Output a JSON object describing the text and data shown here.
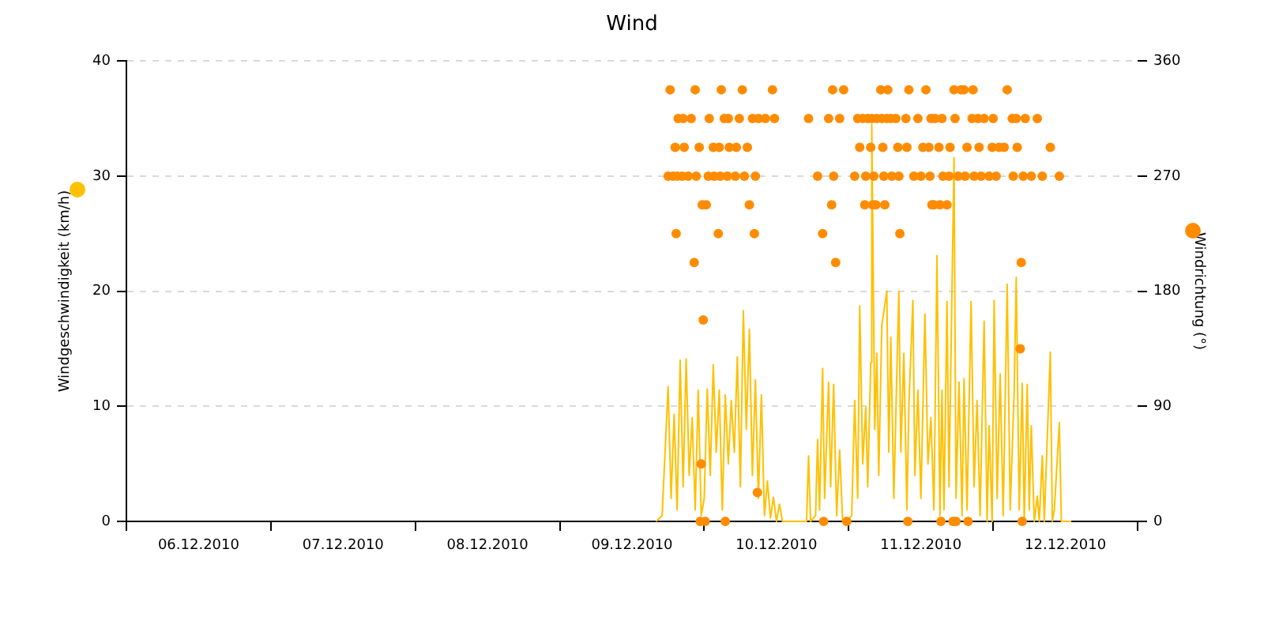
{
  "chart_data": {
    "type": "line",
    "title": "Wind",
    "ylabel": "Windgeschwindigkeit (km/h)",
    "y2label": "Windrichtung (°)",
    "xlim": [
      "2010-12-06T00:00",
      "2010-12-13T00:00"
    ],
    "xticks": [
      {
        "value": "2010-12-06T00:00",
        "label": null
      },
      {
        "value": "2010-12-06T12:00",
        "label": "06.12.2010"
      },
      {
        "value": "2010-12-07T00:00",
        "label": null
      },
      {
        "value": "2010-12-07T12:00",
        "label": "07.12.2010"
      },
      {
        "value": "2010-12-08T00:00",
        "label": null
      },
      {
        "value": "2010-12-08T12:00",
        "label": "08.12.2010"
      },
      {
        "value": "2010-12-09T00:00",
        "label": null
      },
      {
        "value": "2010-12-09T12:00",
        "label": "09.12.2010"
      },
      {
        "value": "2010-12-10T00:00",
        "label": null
      },
      {
        "value": "2010-12-10T12:00",
        "label": "10.12.2010"
      },
      {
        "value": "2010-12-11T00:00",
        "label": null
      },
      {
        "value": "2010-12-11T12:00",
        "label": "11.12.2010"
      },
      {
        "value": "2010-12-12T00:00",
        "label": null
      },
      {
        "value": "2010-12-12T12:00",
        "label": "12.12.2010"
      },
      {
        "value": "2010-12-13T00:00",
        "label": null
      }
    ],
    "ylim": [
      0,
      40
    ],
    "yticks": [
      0,
      10,
      20,
      30,
      40
    ],
    "y2lim": [
      0,
      360
    ],
    "y2ticks": [
      0,
      90,
      180,
      270,
      360
    ],
    "grid": "y",
    "legend": false,
    "line_style": "solid",
    "series": [
      {
        "axis": "y",
        "color": "#ffc000",
        "marker": "none",
        "x": [
          "2010-12-09T16:00",
          "2010-12-09T17:00",
          "2010-12-09T18:00",
          "2010-12-09T18:30",
          "2010-12-09T19:00",
          "2010-12-09T19:30",
          "2010-12-09T20:00",
          "2010-12-09T20:30",
          "2010-12-09T21:00",
          "2010-12-09T21:30",
          "2010-12-09T22:00",
          "2010-12-09T22:30",
          "2010-12-09T23:00",
          "2010-12-09T23:30",
          "2010-12-10T00:00",
          "2010-12-10T00:30",
          "2010-12-10T01:00",
          "2010-12-10T01:30",
          "2010-12-10T02:00",
          "2010-12-10T02:30",
          "2010-12-10T03:00",
          "2010-12-10T03:30",
          "2010-12-10T04:00",
          "2010-12-10T04:30",
          "2010-12-10T05:00",
          "2010-12-10T05:30",
          "2010-12-10T06:00",
          "2010-12-10T06:30",
          "2010-12-10T07:00",
          "2010-12-10T07:30",
          "2010-12-10T08:00",
          "2010-12-10T08:30",
          "2010-12-10T09:00",
          "2010-12-10T09:30",
          "2010-12-10T10:00",
          "2010-12-10T10:30",
          "2010-12-10T11:00",
          "2010-12-10T11:30",
          "2010-12-10T12:00",
          "2010-12-10T12:30",
          "2010-12-10T13:00",
          "2010-12-10T17:00",
          "2010-12-10T17:20",
          "2010-12-10T17:40",
          "2010-12-10T18:30",
          "2010-12-10T18:50",
          "2010-12-10T19:10",
          "2010-12-10T19:40",
          "2010-12-10T20:00",
          "2010-12-10T20:40",
          "2010-12-10T21:00",
          "2010-12-10T21:30",
          "2010-12-10T22:00",
          "2010-12-10T22:30",
          "2010-12-10T23:00",
          "2010-12-10T23:40",
          "2010-12-11T00:30",
          "2010-12-11T01:00",
          "2010-12-11T01:30",
          "2010-12-11T01:50",
          "2010-12-11T02:20",
          "2010-12-11T02:50",
          "2010-12-11T03:10",
          "2010-12-11T03:40",
          "2010-12-11T03:50",
          "2010-12-11T04:20",
          "2010-12-11T04:40",
          "2010-12-11T05:00",
          "2010-12-11T05:30",
          "2010-12-11T06:20",
          "2010-12-11T06:40",
          "2010-12-11T07:00",
          "2010-12-11T07:30",
          "2010-12-11T08:20",
          "2010-12-11T08:40",
          "2010-12-11T09:10",
          "2010-12-11T09:40",
          "2010-12-11T10:00",
          "2010-12-11T10:40",
          "2010-12-11T11:00",
          "2010-12-11T11:30",
          "2010-12-11T12:00",
          "2010-12-11T12:40",
          "2010-12-11T13:10",
          "2010-12-11T13:40",
          "2010-12-11T14:10",
          "2010-12-11T14:40",
          "2010-12-11T15:10",
          "2010-12-11T15:30",
          "2010-12-11T15:50",
          "2010-12-11T16:20",
          "2010-12-11T16:40",
          "2010-12-11T17:30",
          "2010-12-11T17:50",
          "2010-12-11T18:20",
          "2010-12-11T18:50",
          "2010-12-11T19:10",
          "2010-12-11T19:40",
          "2010-12-11T20:20",
          "2010-12-11T20:50",
          "2010-12-11T21:20",
          "2010-12-11T21:50",
          "2010-12-11T22:30",
          "2010-12-11T23:00",
          "2010-12-11T23:20",
          "2010-12-11T23:50",
          "2010-12-12T00:10",
          "2010-12-12T00:40",
          "2010-12-12T01:10",
          "2010-12-12T01:40",
          "2010-12-12T02:20",
          "2010-12-12T02:50",
          "2010-12-12T03:30",
          "2010-12-12T03:50",
          "2010-12-12T04:20",
          "2010-12-12T04:50",
          "2010-12-12T05:10",
          "2010-12-12T05:40",
          "2010-12-12T06:00",
          "2010-12-12T06:20",
          "2010-12-12T06:50",
          "2010-12-12T07:20",
          "2010-12-12T07:40",
          "2010-12-12T08:10",
          "2010-12-12T08:30",
          "2010-12-12T09:30",
          "2010-12-12T09:50",
          "2010-12-12T10:10",
          "2010-12-12T11:00",
          "2010-12-12T11:20",
          "2010-12-12T12:00",
          "2010-12-12T13:00"
        ],
        "values": [
          0,
          0.5,
          11.7,
          2,
          9.3,
          1,
          14,
          3,
          14.1,
          4,
          9,
          1,
          11.4,
          0.5,
          2,
          11.5,
          4,
          13.6,
          6,
          11.4,
          1,
          11,
          5,
          10.5,
          6,
          14.3,
          3,
          18.3,
          8,
          16.7,
          4,
          12.3,
          2,
          11,
          0.5,
          3.5,
          0.3,
          2.1,
          0,
          1.5,
          0,
          0,
          5.7,
          0,
          0.5,
          7.1,
          1,
          13.3,
          2,
          12.1,
          3,
          11.9,
          0.5,
          6.2,
          0,
          0,
          0.5,
          10.5,
          2,
          18.7,
          5,
          9.9,
          3,
          13.8,
          34.5,
          8,
          14.6,
          4,
          17,
          20,
          6,
          16,
          2,
          20,
          6,
          14.6,
          1,
          10,
          19.2,
          4,
          11.4,
          2,
          18,
          5,
          9,
          1,
          23.1,
          0.5,
          11.4,
          1,
          19.1,
          3,
          31.6,
          2,
          12.1,
          0.5,
          12.4,
          1,
          19.1,
          3,
          10.5,
          0.5,
          17.4,
          0,
          8.3,
          0,
          19.2,
          2,
          12.8,
          0.5,
          20.6,
          1,
          11.4,
          21.2,
          1,
          12,
          0,
          11.9,
          1,
          8.3,
          0,
          2.2,
          0,
          5.7,
          0,
          14.7,
          0,
          1,
          8.6,
          0,
          0,
          0
        ]
      },
      {
        "type": "scatter",
        "axis": "y2",
        "color": "#ff8c00",
        "marker": "circle",
        "x": [
          "2010-12-09T18:20",
          "2010-12-09T22:30",
          "2010-12-10T02:50",
          "2010-12-10T06:20",
          "2010-12-10T11:20",
          "2010-12-09T19:40",
          "2010-12-09T20:30",
          "2010-12-09T21:50",
          "2010-12-10T00:50",
          "2010-12-10T03:20",
          "2010-12-10T04:00",
          "2010-12-10T05:50",
          "2010-12-10T08:00",
          "2010-12-10T09:00",
          "2010-12-10T10:10",
          "2010-12-10T11:40",
          "2010-12-09T19:10",
          "2010-12-09T20:40",
          "2010-12-09T23:10",
          "2010-12-10T01:30",
          "2010-12-10T02:30",
          "2010-12-10T04:10",
          "2010-12-10T05:20",
          "2010-12-10T07:10",
          "2010-12-09T18:00",
          "2010-12-09T18:50",
          "2010-12-09T19:30",
          "2010-12-09T20:20",
          "2010-12-09T21:20",
          "2010-12-09T22:40",
          "2010-12-10T00:40",
          "2010-12-10T01:40",
          "2010-12-10T02:40",
          "2010-12-10T03:50",
          "2010-12-10T05:10",
          "2010-12-10T06:40",
          "2010-12-10T08:30",
          "2010-12-09T23:40",
          "2010-12-10T00:20",
          "2010-12-10T07:30",
          "2010-12-09T19:20",
          "2010-12-10T02:20",
          "2010-12-10T08:20",
          "2010-12-09T22:20",
          "2010-12-09T23:50",
          "2010-12-09T23:30",
          "2010-12-10T08:50",
          "2010-12-09T23:20",
          "2010-12-10T00:10",
          "2010-12-10T03:30",
          "2010-12-10T21:20",
          "2010-12-10T23:10",
          "2010-12-11T05:20",
          "2010-12-11T06:30",
          "2010-12-11T10:00",
          "2010-12-11T12:50",
          "2010-12-10T17:20",
          "2010-12-10T20:40",
          "2010-12-10T22:30",
          "2010-12-11T01:30",
          "2010-12-11T02:20",
          "2010-12-11T03:10",
          "2010-12-11T03:50",
          "2010-12-11T04:40",
          "2010-12-11T05:30",
          "2010-12-11T06:20",
          "2010-12-11T07:00",
          "2010-12-11T07:50",
          "2010-12-11T09:30",
          "2010-12-11T11:30",
          "2010-12-11T13:40",
          "2010-12-11T01:50",
          "2010-12-11T03:40",
          "2010-12-11T05:40",
          "2010-12-11T08:10",
          "2010-12-11T09:40",
          "2010-12-11T12:20",
          "2010-12-11T13:20",
          "2010-12-10T18:50",
          "2010-12-10T21:30",
          "2010-12-11T01:00",
          "2010-12-11T02:50",
          "2010-12-11T04:10",
          "2010-12-11T05:50",
          "2010-12-11T07:10",
          "2010-12-11T08:20",
          "2010-12-11T10:50",
          "2010-12-11T12:00",
          "2010-12-11T13:30",
          "2010-12-10T21:10",
          "2010-12-11T02:40",
          "2010-12-11T04:00",
          "2010-12-11T04:30",
          "2010-12-11T06:00",
          "2010-12-11T13:50",
          "2010-12-10T19:40",
          "2010-12-11T08:30",
          "2010-12-10T21:50",
          "2010-12-10T19:50",
          "2010-12-10T23:40",
          "2010-12-11T09:50",
          "2010-12-11T17:30",
          "2010-12-11T18:40",
          "2010-12-11T19:10",
          "2010-12-11T20:40",
          "2010-12-12T02:20",
          "2010-12-11T14:20",
          "2010-12-11T15:30",
          "2010-12-11T17:40",
          "2010-12-11T20:30",
          "2010-12-11T21:30",
          "2010-12-11T22:30",
          "2010-12-12T00:00",
          "2010-12-12T03:10",
          "2010-12-12T03:50",
          "2010-12-12T05:20",
          "2010-12-12T07:20",
          "2010-12-11T15:00",
          "2010-12-11T16:50",
          "2010-12-11T19:40",
          "2010-12-11T21:40",
          "2010-12-11T23:50",
          "2010-12-12T01:00",
          "2010-12-12T01:50",
          "2010-12-12T04:00",
          "2010-12-12T09:30",
          "2010-12-11T15:40",
          "2010-12-11T16:40",
          "2010-12-11T18:10",
          "2010-12-11T19:20",
          "2010-12-11T20:50",
          "2010-12-11T22:00",
          "2010-12-11T23:20",
          "2010-12-12T00:30",
          "2010-12-12T03:20",
          "2010-12-12T05:00",
          "2010-12-12T06:20",
          "2010-12-12T08:10",
          "2010-12-12T11:00",
          "2010-12-11T14:10",
          "2010-12-11T15:10",
          "2010-12-11T16:20",
          "2010-12-12T04:40",
          "2010-12-12T04:30",
          "2010-12-11T15:20",
          "2010-12-11T17:20",
          "2010-12-11T17:50",
          "2010-12-11T19:50",
          "2010-12-12T04:50"
        ],
        "values": [
          337.5,
          337.5,
          337.5,
          337.5,
          337.5,
          315,
          315,
          315,
          315,
          315,
          315,
          315,
          315,
          315,
          315,
          315,
          292.5,
          292.5,
          292.5,
          292.5,
          292.5,
          292.5,
          292.5,
          292.5,
          270,
          270,
          270,
          270,
          270,
          270,
          270,
          270,
          270,
          270,
          270,
          270,
          270,
          247.5,
          247.5,
          247.5,
          225,
          225,
          225,
          202.5,
          157.5,
          45,
          22.5,
          0,
          0,
          0,
          337.5,
          337.5,
          337.5,
          337.5,
          337.5,
          337.5,
          315,
          315,
          315,
          315,
          315,
          315,
          315,
          315,
          315,
          315,
          315,
          315,
          315,
          315,
          315,
          292.5,
          292.5,
          292.5,
          292.5,
          292.5,
          292.5,
          292.5,
          270,
          270,
          270,
          270,
          270,
          270,
          270,
          270,
          270,
          270,
          270,
          247.5,
          247.5,
          247.5,
          247.5,
          247.5,
          247.5,
          225,
          225,
          202.5,
          0,
          0,
          0,
          337.5,
          337.5,
          337.5,
          337.5,
          337.5,
          315,
          315,
          315,
          315,
          315,
          315,
          315,
          315,
          315,
          315,
          315,
          292.5,
          292.5,
          292.5,
          292.5,
          292.5,
          292.5,
          292.5,
          292.5,
          292.5,
          270,
          270,
          270,
          270,
          270,
          270,
          270,
          270,
          270,
          270,
          270,
          270,
          270,
          247.5,
          247.5,
          247.5,
          202.5,
          135,
          0,
          0,
          0,
          0,
          0
        ]
      }
    ]
  }
}
